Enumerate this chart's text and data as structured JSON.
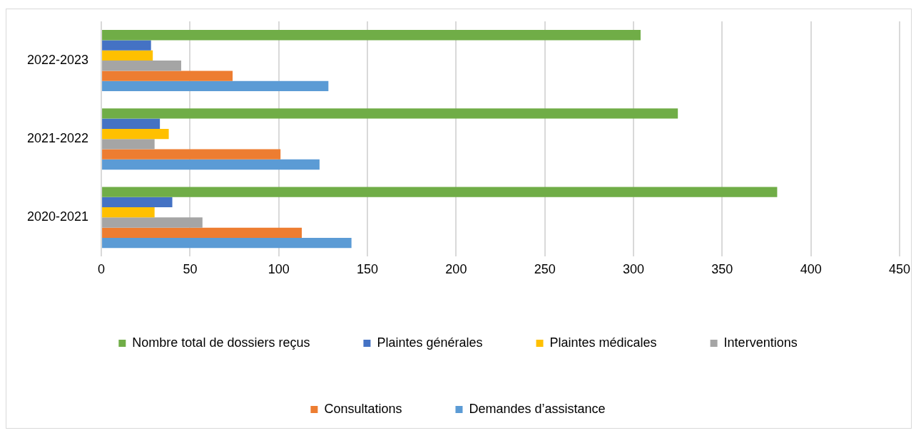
{
  "chart_data": {
    "type": "bar",
    "orientation": "horizontal",
    "categories": [
      "2022-2023",
      "2021-2022",
      "2020-2021"
    ],
    "series": [
      {
        "name": "Nombre total de dossiers reçus",
        "color": "#70ad47",
        "values": [
          304,
          325,
          381
        ]
      },
      {
        "name": "Plaintes générales",
        "color": "#4472c4",
        "values": [
          28,
          33,
          40
        ]
      },
      {
        "name": "Plaintes médicales",
        "color": "#ffc000",
        "values": [
          29,
          38,
          30
        ]
      },
      {
        "name": "Interventions",
        "color": "#a5a5a5",
        "values": [
          45,
          30,
          57
        ]
      },
      {
        "name": "Consultations",
        "color": "#ed7d31",
        "values": [
          74,
          101,
          113
        ]
      },
      {
        "name": "Demandes d’assistance",
        "color": "#5b9bd5",
        "values": [
          128,
          123,
          141
        ]
      }
    ],
    "xlim": [
      0,
      450
    ],
    "xticks": [
      0,
      50,
      100,
      150,
      200,
      250,
      300,
      350,
      400,
      450
    ],
    "grid": "x",
    "legend": "bottom"
  }
}
